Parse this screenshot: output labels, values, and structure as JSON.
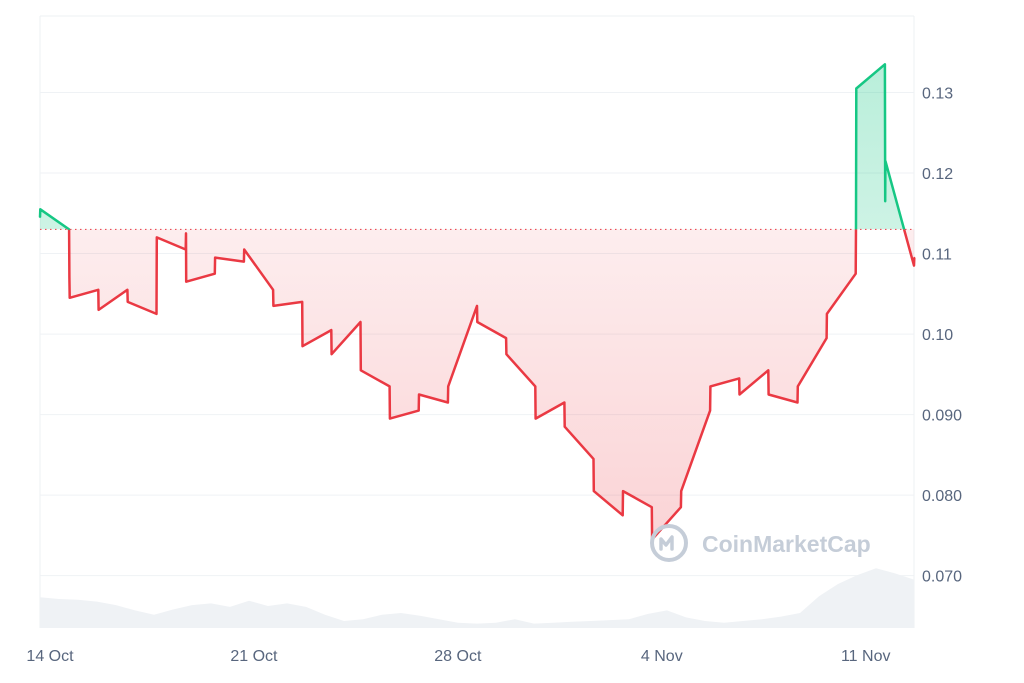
{
  "chart_data": {
    "type": "area",
    "title": "",
    "xlabel": "",
    "ylabel": "",
    "x_ticks": [
      "14 Oct",
      "21 Oct",
      "28 Oct",
      "4 Nov",
      "11 Nov"
    ],
    "y_ticks": [
      "0.070",
      "0.080",
      "0.090",
      "0.10",
      "0.11",
      "0.12",
      "0.13"
    ],
    "y_tick_values": [
      0.07,
      0.08,
      0.09,
      0.1,
      0.11,
      0.12,
      0.13
    ],
    "ylim": [
      0.0635,
      0.1395
    ],
    "xlim": [
      "2024-10-14",
      "2024-11-13"
    ],
    "baseline": 0.113,
    "grid": true,
    "series": [
      {
        "values_x": [
          "2024-10-14",
          "2024-10-14",
          "2024-10-15",
          "2024-10-15",
          "2024-10-15",
          "2024-10-16",
          "2024-10-16",
          "2024-10-17",
          "2024-10-17",
          "2024-10-18",
          "2024-10-18",
          "2024-10-19",
          "2024-10-19",
          "2024-10-19",
          "2024-10-20",
          "2024-10-20",
          "2024-10-21",
          "2024-10-21",
          "2024-10-22",
          "2024-10-22",
          "2024-10-23",
          "2024-10-23",
          "2024-10-24",
          "2024-10-24",
          "2024-10-25",
          "2024-10-25",
          "2024-10-26",
          "2024-10-26",
          "2024-10-27",
          "2024-10-27",
          "2024-10-28",
          "2024-10-28",
          "2024-10-29",
          "2024-10-29",
          "2024-10-30",
          "2024-10-30",
          "2024-10-31",
          "2024-10-31",
          "2024-11-01",
          "2024-11-01",
          "2024-11-02",
          "2024-11-02",
          "2024-11-03",
          "2024-11-03",
          "2024-11-04",
          "2024-11-04",
          "2024-11-05",
          "2024-11-05",
          "2024-11-06",
          "2024-11-06",
          "2024-11-07",
          "2024-11-07",
          "2024-11-08",
          "2024-11-08",
          "2024-11-09",
          "2024-11-09",
          "2024-11-10",
          "2024-11-10",
          "2024-11-11",
          "2024-11-11",
          "2024-11-11",
          "2024-11-12",
          "2024-11-12",
          "2024-11-12",
          "2024-11-13",
          "2024-11-13"
        ],
        "values_y": [
          0.1145,
          0.1155,
          0.113,
          0.107,
          0.1045,
          0.1055,
          0.103,
          0.1055,
          0.104,
          0.1025,
          0.112,
          0.1105,
          0.1125,
          0.1065,
          0.1075,
          0.1095,
          0.109,
          0.1105,
          0.1055,
          0.1035,
          0.104,
          0.0985,
          0.1005,
          0.0975,
          0.1015,
          0.0955,
          0.0935,
          0.0895,
          0.0905,
          0.0925,
          0.0915,
          0.0935,
          0.1035,
          0.1015,
          0.0995,
          0.0975,
          0.0935,
          0.0895,
          0.0915,
          0.0885,
          0.0845,
          0.0805,
          0.0775,
          0.0805,
          0.0785,
          0.0745,
          0.0785,
          0.0805,
          0.0905,
          0.0935,
          0.0945,
          0.0925,
          0.0955,
          0.0925,
          0.0915,
          0.0935,
          0.0995,
          0.1025,
          0.1075,
          0.1135,
          0.1305,
          0.1335,
          0.1165,
          0.1215,
          0.1085,
          0.1095
        ]
      }
    ],
    "volume": {
      "values": [
        0.35,
        0.33,
        0.32,
        0.3,
        0.26,
        0.2,
        0.15,
        0.21,
        0.26,
        0.28,
        0.24,
        0.31,
        0.25,
        0.28,
        0.24,
        0.15,
        0.08,
        0.1,
        0.15,
        0.17,
        0.14,
        0.1,
        0.06,
        0.05,
        0.06,
        0.1,
        0.05,
        0.06,
        0.07,
        0.08,
        0.09,
        0.1,
        0.16,
        0.2,
        0.12,
        0.08,
        0.06,
        0.08,
        0.1,
        0.13,
        0.17,
        0.36,
        0.5,
        0.6,
        0.68,
        0.62,
        0.55
      ]
    },
    "up_color": "#16c784",
    "down_color": "#ea3943"
  },
  "watermark": {
    "text": "CoinMarketCap",
    "icon": "coinmarketcap-logo-icon"
  }
}
